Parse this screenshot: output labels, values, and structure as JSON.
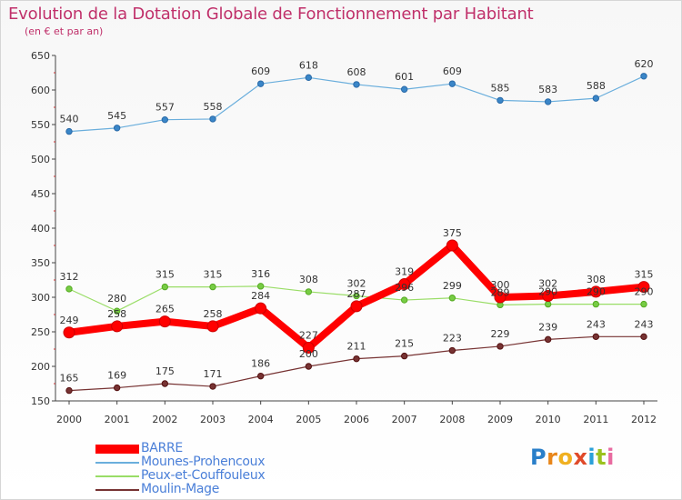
{
  "header": {
    "title": "Evolution de la Dotation Globale de Fonctionnement par Habitant",
    "subtitle": "(en € et par an)"
  },
  "logo": {
    "text": "Proxiti",
    "letters": [
      "P",
      "r",
      "o",
      "x",
      "i",
      "t",
      "i"
    ]
  },
  "chart_data": {
    "type": "line",
    "title": "Evolution de la Dotation Globale de Fonctionnement par Habitant",
    "subtitle": "(en € et par an)",
    "xlabel": "",
    "ylabel": "",
    "ylim": [
      150,
      650
    ],
    "yticks": [
      150,
      200,
      250,
      300,
      350,
      400,
      450,
      500,
      550,
      600,
      650
    ],
    "grid": false,
    "legend_position": "bottom-left",
    "categories": [
      "2000",
      "2001",
      "2002",
      "2003",
      "2004",
      "2005",
      "2006",
      "2007",
      "2008",
      "2009",
      "2010",
      "2011",
      "2012"
    ],
    "series": [
      {
        "name": "BARRE",
        "color": "#ff0000",
        "values": [
          249,
          258,
          265,
          258,
          284,
          227,
          287,
          319,
          375,
          300,
          302,
          308,
          315
        ],
        "labels": [
          "249",
          "258",
          "265",
          "258",
          "284",
          "227",
          "287",
          "319",
          "375",
          "300",
          "302",
          "308",
          "315"
        ]
      },
      {
        "name": "Mounes-Prohencoux",
        "color": "#6aaedc",
        "values": [
          540,
          545,
          557,
          558,
          609,
          618,
          608,
          601,
          609,
          585,
          583,
          588,
          620
        ],
        "labels": [
          "540",
          "545",
          "557",
          "558",
          "609",
          "618",
          "608",
          "601",
          "609",
          "585",
          "583",
          "588",
          "620"
        ]
      },
      {
        "name": "Peux-et-Couffouleux",
        "color": "#99dd66",
        "values": [
          312,
          280,
          315,
          315,
          316,
          308,
          302,
          296,
          299,
          289,
          290,
          290,
          290
        ],
        "labels": [
          "312",
          "280",
          "315",
          "315",
          "316",
          "308",
          "302",
          "296",
          "299",
          "289",
          "290",
          "290",
          "290"
        ]
      },
      {
        "name": "Moulin-Mage",
        "color": "#773333",
        "values": [
          165,
          169,
          175,
          171,
          186,
          200,
          211,
          215,
          223,
          229,
          239,
          243,
          243
        ],
        "labels": [
          "165",
          "169",
          "175",
          "171",
          "186",
          "200",
          "211",
          "215",
          "223",
          "229",
          "239",
          "243",
          "243"
        ]
      }
    ]
  }
}
